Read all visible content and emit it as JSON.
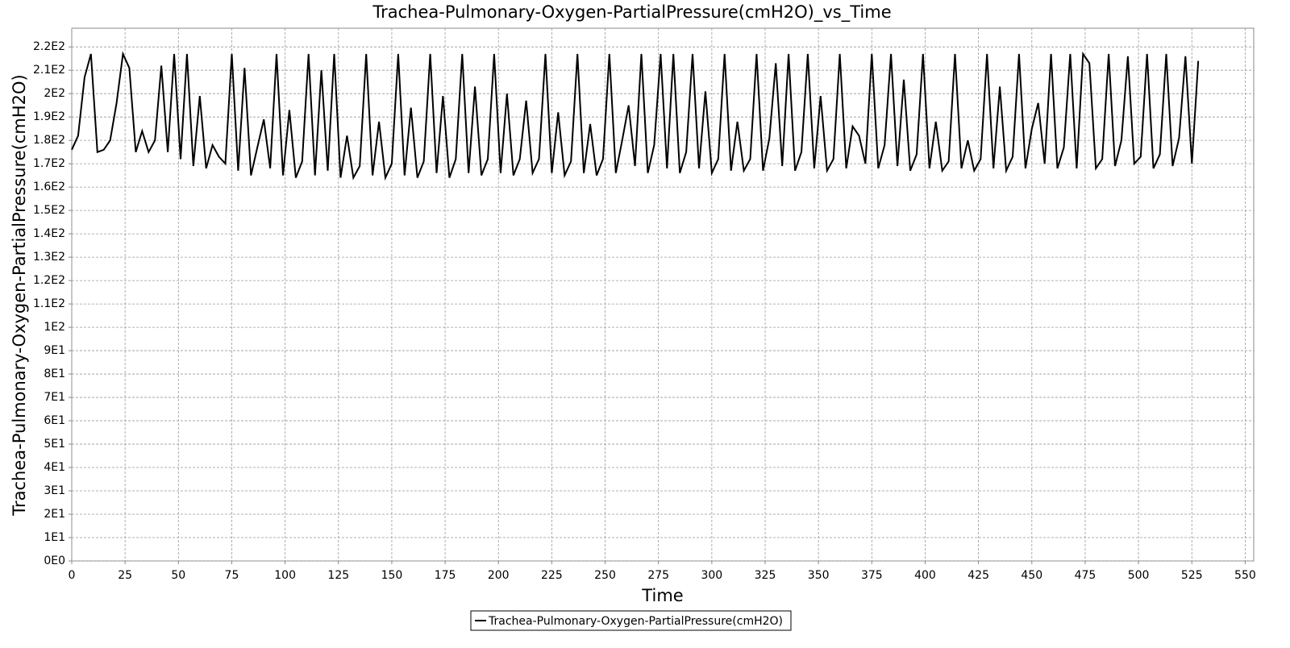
{
  "chart_data": {
    "type": "line",
    "title": "Trachea-Pulmonary-Oxygen-PartialPressure(cmH2O)_vs_Time",
    "x_label": "Time",
    "y_label": "Trachea-Pulmonary-Oxygen-PartialPressure(cmH2O)",
    "xlim": [
      0,
      554
    ],
    "ylim": [
      0,
      228
    ],
    "xticks": [
      0,
      25,
      50,
      75,
      100,
      125,
      150,
      175,
      200,
      225,
      250,
      275,
      300,
      325,
      350,
      375,
      400,
      425,
      450,
      475,
      500,
      525,
      550
    ],
    "yticks": [
      {
        "value": 0,
        "label": "0E0"
      },
      {
        "value": 10,
        "label": "1E1"
      },
      {
        "value": 20,
        "label": "2E1"
      },
      {
        "value": 30,
        "label": "3E1"
      },
      {
        "value": 40,
        "label": "4E1"
      },
      {
        "value": 50,
        "label": "5E1"
      },
      {
        "value": 60,
        "label": "6E1"
      },
      {
        "value": 70,
        "label": "7E1"
      },
      {
        "value": 80,
        "label": "8E1"
      },
      {
        "value": 90,
        "label": "9E1"
      },
      {
        "value": 100,
        "label": "1E2"
      },
      {
        "value": 110,
        "label": "1.1E2"
      },
      {
        "value": 120,
        "label": "1.2E2"
      },
      {
        "value": 130,
        "label": "1.3E2"
      },
      {
        "value": 140,
        "label": "1.4E2"
      },
      {
        "value": 150,
        "label": "1.5E2"
      },
      {
        "value": 160,
        "label": "1.6E2"
      },
      {
        "value": 170,
        "label": "1.7E2"
      },
      {
        "value": 180,
        "label": "1.8E2"
      },
      {
        "value": 190,
        "label": "1.9E2"
      },
      {
        "value": 200,
        "label": "2E2"
      },
      {
        "value": 210,
        "label": "2.1E2"
      },
      {
        "value": 220,
        "label": "2.2E2"
      }
    ],
    "grid": true,
    "legend": "bottom",
    "x": [
      0,
      3,
      6,
      9,
      12,
      15,
      18,
      21,
      24,
      27,
      30,
      33,
      36,
      39,
      42,
      45,
      48,
      51,
      54,
      57,
      60,
      63,
      66,
      69,
      72,
      75,
      78,
      81,
      84,
      87,
      90,
      93,
      96,
      99,
      102,
      105,
      108,
      111,
      114,
      117,
      120,
      123,
      126,
      129,
      132,
      135,
      138,
      141,
      144,
      147,
      150,
      153,
      156,
      159,
      162,
      165,
      168,
      171,
      174,
      177,
      180,
      183,
      186,
      189,
      192,
      195,
      198,
      201,
      204,
      207,
      210,
      213,
      216,
      219,
      222,
      225,
      228,
      231,
      234,
      237,
      240,
      243,
      246,
      249,
      252,
      255,
      258,
      261,
      264,
      267,
      270,
      273,
      276,
      279,
      282,
      285,
      288,
      291,
      294,
      297,
      300,
      303,
      306,
      309,
      312,
      315,
      318,
      321,
      324,
      327,
      330,
      333,
      336,
      339,
      342,
      345,
      348,
      351,
      354,
      357,
      360,
      363,
      366,
      369,
      372,
      375,
      378,
      381,
      384,
      387,
      390,
      393,
      396,
      399,
      402,
      405,
      408,
      411,
      414,
      417,
      420,
      423,
      426,
      429,
      432,
      435,
      438,
      441,
      444,
      447,
      450,
      453,
      456,
      459,
      462,
      465,
      468,
      471,
      474,
      477,
      480,
      483,
      486,
      489,
      492,
      495,
      498,
      501,
      504,
      507,
      510,
      513,
      516,
      519,
      522,
      525,
      528
    ],
    "series": [
      {
        "name": "Trachea-Pulmonary-Oxygen-PartialPressure(cmH2O)",
        "color": "#000000",
        "values": [
          176,
          182,
          207,
          217,
          175,
          176,
          180,
          196,
          217,
          211,
          175,
          184,
          175,
          180,
          212,
          175,
          217,
          172,
          217,
          169,
          199,
          168,
          178,
          173,
          170,
          217,
          167,
          211,
          165,
          177,
          189,
          168,
          217,
          165,
          193,
          164,
          171,
          217,
          165,
          210,
          167,
          217,
          164,
          182,
          164,
          169,
          217,
          165,
          188,
          164,
          170,
          217,
          165,
          194,
          164,
          171,
          217,
          166,
          199,
          164,
          172,
          217,
          166,
          203,
          165,
          172,
          217,
          166,
          200,
          165,
          172,
          197,
          166,
          172,
          217,
          166,
          192,
          165,
          171,
          217,
          166,
          187,
          165,
          172,
          217,
          166,
          180,
          195,
          169,
          217,
          166,
          178,
          217,
          168,
          217,
          166,
          175,
          217,
          168,
          201,
          166,
          172,
          217,
          167,
          188,
          167,
          172,
          217,
          167,
          181,
          213,
          169,
          217,
          167,
          175,
          217,
          168,
          199,
          167,
          172,
          217,
          168,
          186,
          182,
          170,
          217,
          168,
          178,
          217,
          169,
          206,
          167,
          174,
          217,
          168,
          188,
          167,
          171,
          217,
          168,
          180,
          167,
          172,
          217,
          168,
          203,
          167,
          173,
          217,
          168,
          185,
          196,
          170,
          217,
          168,
          177,
          217,
          168,
          217,
          213,
          168,
          172,
          217,
          169,
          180,
          216,
          170,
          173,
          217,
          168,
          174,
          217,
          169,
          181,
          216,
          170,
          214
        ]
      }
    ]
  }
}
